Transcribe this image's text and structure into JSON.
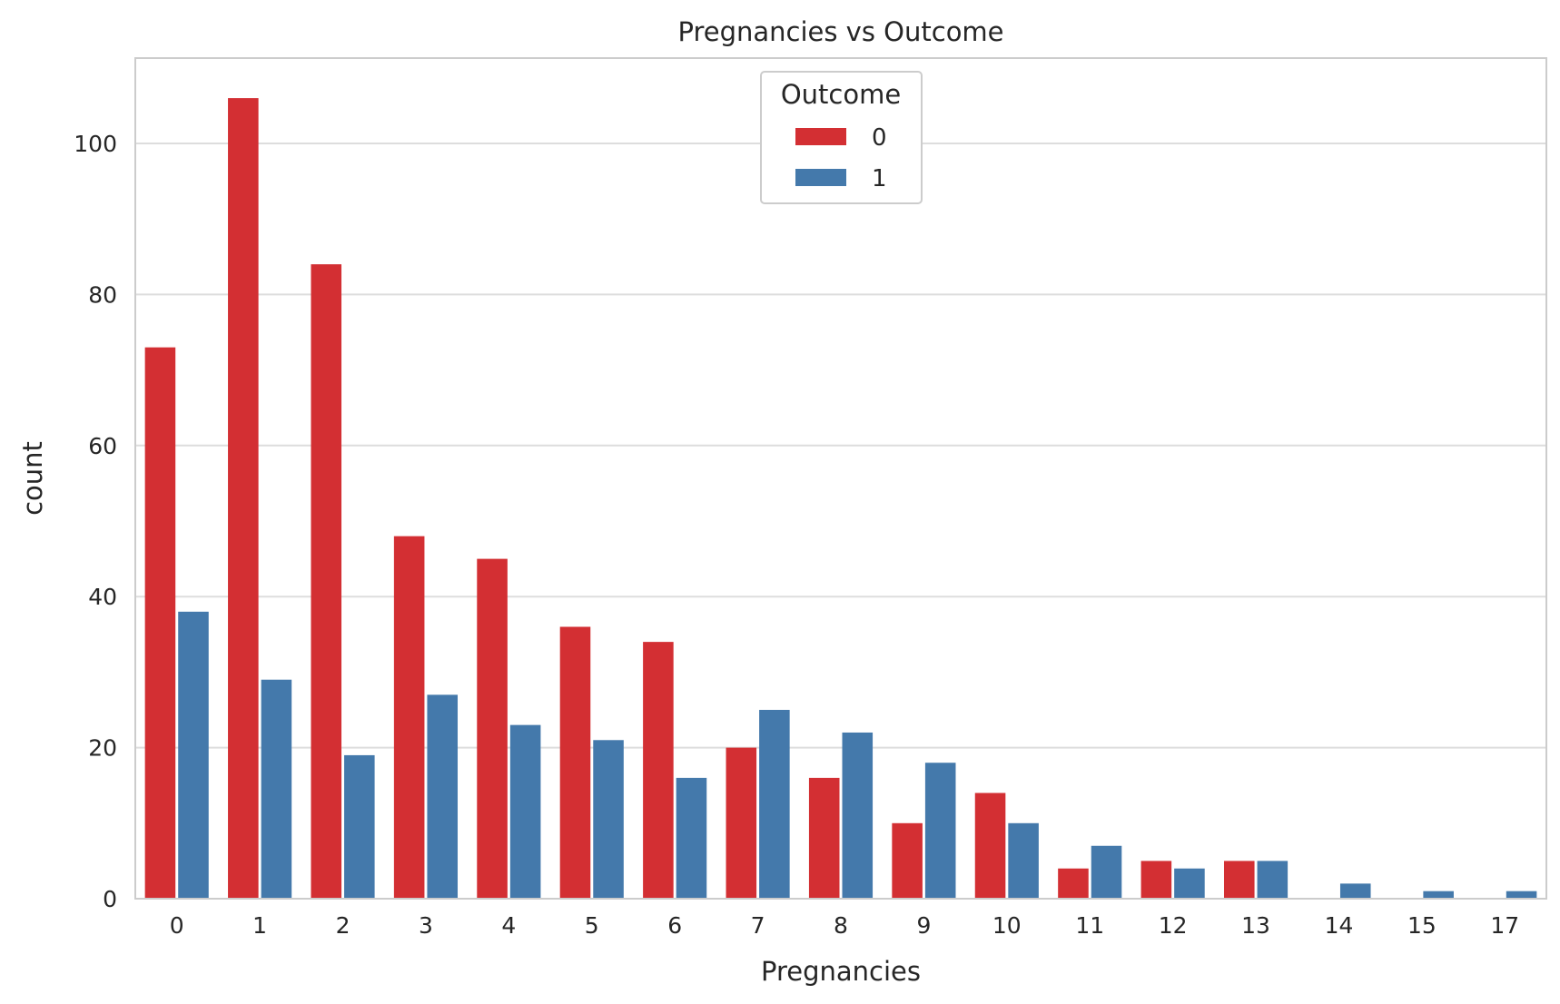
{
  "chart_data": {
    "type": "bar",
    "title": "Pregnancies vs Outcome",
    "xlabel": "Pregnancies",
    "ylabel": "count",
    "categories": [
      "0",
      "1",
      "2",
      "3",
      "4",
      "5",
      "6",
      "7",
      "8",
      "9",
      "10",
      "11",
      "12",
      "13",
      "14",
      "15",
      "17"
    ],
    "series": [
      {
        "name": "0",
        "color": "#d32f33",
        "values": [
          73,
          106,
          84,
          48,
          45,
          36,
          34,
          20,
          16,
          10,
          14,
          4,
          5,
          5,
          0,
          0,
          0
        ]
      },
      {
        "name": "1",
        "color": "#4479ab",
        "values": [
          38,
          29,
          19,
          27,
          23,
          21,
          16,
          25,
          22,
          18,
          10,
          7,
          4,
          5,
          2,
          1,
          1
        ]
      }
    ],
    "ylim": [
      0,
      111.3
    ],
    "yticks": [
      0,
      20,
      40,
      60,
      80,
      100
    ],
    "grid": "horizontal",
    "legend": {
      "title": "Outcome",
      "placement": "top-center"
    }
  }
}
